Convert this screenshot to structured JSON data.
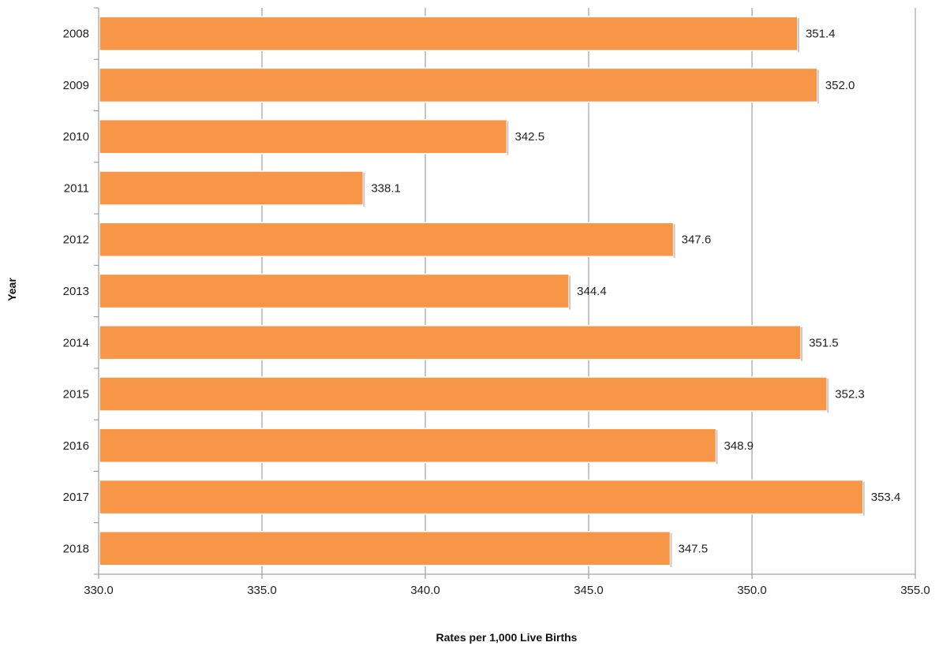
{
  "chart_data": {
    "type": "bar",
    "orientation": "horizontal",
    "title": "",
    "xlabel": "Rates per 1,000 Live Births",
    "ylabel": "Year",
    "categories": [
      "2008",
      "2009",
      "2010",
      "2011",
      "2012",
      "2013",
      "2014",
      "2015",
      "2016",
      "2017",
      "2018"
    ],
    "values": [
      351.4,
      352.0,
      342.5,
      338.1,
      347.6,
      344.4,
      351.5,
      352.3,
      348.9,
      353.4,
      347.5
    ],
    "value_labels": [
      "351.4",
      "352.0",
      "342.5",
      "338.1",
      "347.6",
      "344.4",
      "351.5",
      "352.3",
      "348.9",
      "353.4",
      "347.5"
    ],
    "xlim": [
      330,
      355
    ],
    "xticks": [
      "330.0",
      "335.0",
      "340.0",
      "345.0",
      "350.0",
      "355.0"
    ],
    "grid": "vertical",
    "legend": "none",
    "colors": {
      "bar": "#F79646",
      "bar_edge": "#ffffff",
      "grid": "#8c8c8c",
      "axis": "#8c8c8c"
    }
  }
}
